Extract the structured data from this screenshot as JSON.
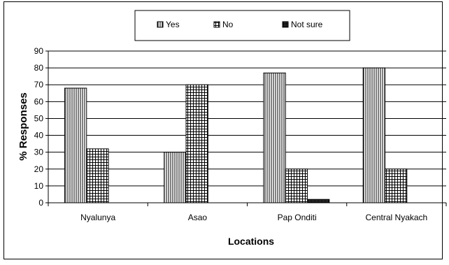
{
  "chart_data": {
    "type": "bar",
    "xlabel": "Locations",
    "ylabel": "% Responses",
    "ylim": [
      0,
      90
    ],
    "yticks": [
      0,
      10,
      20,
      30,
      40,
      50,
      60,
      70,
      80,
      90
    ],
    "grid": true,
    "legend_position": "top-center",
    "categories": [
      "Nyalunya",
      "Asao",
      "Pap Onditi",
      "Central Nyakach"
    ],
    "series": [
      {
        "name": "Yes",
        "values": [
          68,
          30,
          77,
          80
        ],
        "pattern": "vertical-lines"
      },
      {
        "name": "No",
        "values": [
          32,
          70,
          20,
          20
        ],
        "pattern": "grid"
      },
      {
        "name": "Not sure",
        "values": [
          0,
          0,
          2,
          0
        ],
        "pattern": "dense-dark"
      }
    ]
  }
}
